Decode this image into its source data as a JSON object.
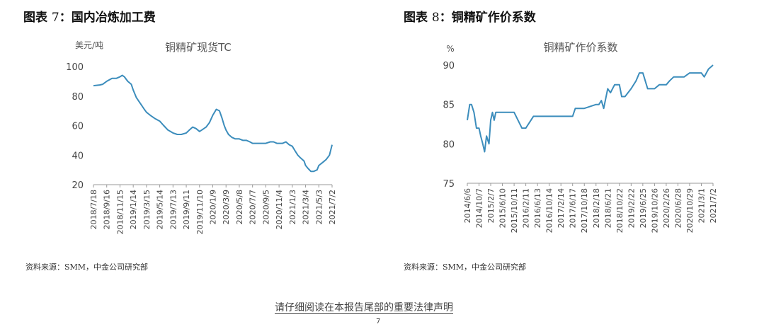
{
  "figures": [
    {
      "title_prefix": "图表",
      "title_num": "7",
      "title_text": "：国内冶炼加工费",
      "source": "资料来源：SMM，中金公司研究部"
    },
    {
      "title_prefix": "图表",
      "title_num": "8",
      "title_text": "：铜精矿作价系数",
      "source": "资料来源：SMM，中金公司研究部"
    }
  ],
  "disclaimer": "请仔细阅读在本报告尾部的重要法律声明",
  "page_mark": "7",
  "chart_data": [
    {
      "type": "line",
      "title": "铜精矿现货TC",
      "unit_label": "美元/吨",
      "ylim": [
        20,
        100
      ],
      "yticks": [
        20,
        40,
        60,
        80,
        100
      ],
      "xtick_labels": [
        "2018/7/18",
        "2018/9/16",
        "2018/11/15",
        "2019/1/14",
        "2019/3/15",
        "2019/5/14",
        "2019/7/13",
        "2019/9/11",
        "2019/11/10",
        "2020/1/9",
        "2020/3/9",
        "2020/5/8",
        "2020/7/7",
        "2020/9/5",
        "2020/11/4",
        "2021/1/3",
        "2021/3/4",
        "2021/5/3",
        "2021/7/2"
      ],
      "grid": false,
      "color": "#3C8DBC",
      "series": [
        {
          "x": [
            "2018/7/18",
            "2018/8/15",
            "2018/8/29",
            "2018/9/16",
            "2018/10/10",
            "2018/10/30",
            "2018/11/15",
            "2018/11/25",
            "2018/12/5",
            "2018/12/20",
            "2019/1/5",
            "2019/1/14",
            "2019/1/28",
            "2019/2/15",
            "2019/3/5",
            "2019/3/15",
            "2019/4/1",
            "2019/4/20",
            "2019/5/14",
            "2019/6/1",
            "2019/6/20",
            "2019/7/13",
            "2019/8/1",
            "2019/8/20",
            "2019/9/11",
            "2019/9/25",
            "2019/10/10",
            "2019/10/25",
            "2019/11/10",
            "2019/11/20",
            "2019/12/10",
            "2019/12/25",
            "2020/1/9",
            "2020/1/25",
            "2020/2/8",
            "2020/2/20",
            "2020/3/1",
            "2020/3/9",
            "2020/3/20",
            "2020/4/5",
            "2020/4/20",
            "2020/5/8",
            "2020/5/25",
            "2020/6/10",
            "2020/6/25",
            "2020/7/7",
            "2020/7/25",
            "2020/8/10",
            "2020/8/25",
            "2020/9/5",
            "2020/9/25",
            "2020/10/10",
            "2020/10/25",
            "2020/11/4",
            "2020/11/20",
            "2020/12/5",
            "2020/12/20",
            "2021/1/3",
            "2021/1/15",
            "2021/1/28",
            "2021/2/10",
            "2021/2/25",
            "2021/3/4",
            "2021/3/15",
            "2021/3/28",
            "2021/4/10",
            "2021/4/25",
            "2021/5/3",
            "2021/5/20",
            "2021/6/5",
            "2021/6/20",
            "2021/7/2"
          ],
          "y": [
            87,
            87.5,
            88,
            90,
            92,
            92,
            93,
            94,
            93,
            90,
            88,
            84,
            79,
            75,
            71,
            69,
            67,
            65,
            63,
            60,
            57,
            55,
            54,
            54,
            55,
            57,
            59,
            58,
            56,
            57,
            59,
            62,
            67,
            71,
            70,
            65,
            60,
            57,
            54,
            52,
            51,
            51,
            50,
            50,
            49,
            48,
            48,
            48,
            48,
            48,
            49,
            49,
            48,
            48,
            48,
            49,
            47,
            46,
            43,
            40,
            38,
            36,
            33,
            31,
            29,
            29,
            30,
            33,
            35,
            37,
            40,
            47
          ]
        }
      ]
    },
    {
      "type": "line",
      "title": "铜精矿作价系数",
      "unit_label": "%",
      "ylim": [
        75,
        90
      ],
      "yticks": [
        75,
        80,
        85,
        90
      ],
      "xtick_labels": [
        "2014/6/6",
        "2014/10/7",
        "2015/2/7",
        "2015/6/10",
        "2015/10/11",
        "2016/2/11",
        "2016/6/13",
        "2016/10/14",
        "2017/2/14",
        "2017/6/17",
        "2017/10/18",
        "2018/2/18",
        "2018/6/21",
        "2018/10/22",
        "2019/2/22",
        "2019/6/25",
        "2019/10/26",
        "2020/2/26",
        "2020/6/28",
        "2020/10/29",
        "2021/3/1",
        "2021/7/2"
      ],
      "grid": false,
      "color": "#3C8DBC",
      "series": [
        {
          "x": [
            "2014/6/6",
            "2014/7/1",
            "2014/7/20",
            "2014/8/15",
            "2014/9/10",
            "2014/10/7",
            "2014/10/25",
            "2014/11/15",
            "2014/12/5",
            "2014/12/25",
            "2015/1/20",
            "2015/2/7",
            "2015/2/25",
            "2015/3/15",
            "2015/4/1",
            "2015/4/15",
            "2015/5/1",
            "2015/6/10",
            "2015/10/11",
            "2016/1/1",
            "2016/2/11",
            "2016/5/1",
            "2016/6/13",
            "2016/10/14",
            "2017/2/14",
            "2017/6/17",
            "2017/7/15",
            "2017/10/18",
            "2018/2/18",
            "2018/3/20",
            "2018/4/15",
            "2018/5/10",
            "2018/6/21",
            "2018/7/20",
            "2018/9/1",
            "2018/10/22",
            "2018/11/15",
            "2018/12/20",
            "2019/2/22",
            "2019/4/15",
            "2019/5/20",
            "2019/6/25",
            "2019/8/15",
            "2019/9/15",
            "2019/10/26",
            "2019/12/15",
            "2020/2/26",
            "2020/4/1",
            "2020/5/15",
            "2020/6/28",
            "2020/9/1",
            "2020/10/29",
            "2021/1/10",
            "2021/3/1",
            "2021/4/1",
            "2021/5/15",
            "2021/7/2"
          ],
          "y": [
            83,
            85,
            85,
            84,
            82,
            82,
            81,
            80,
            79,
            81,
            80,
            83,
            84,
            83,
            84,
            84,
            84,
            84,
            84,
            82,
            82,
            83.5,
            83.5,
            83.5,
            83.5,
            83.5,
            84.5,
            84.5,
            85,
            85,
            85.5,
            84.5,
            87,
            86.5,
            87.5,
            87.5,
            86,
            86,
            87,
            88,
            89,
            89,
            87,
            87,
            87,
            87.5,
            87.5,
            88,
            88.5,
            88.5,
            88.5,
            89,
            89,
            89,
            88.5,
            89.5,
            90
          ]
        }
      ]
    }
  ]
}
